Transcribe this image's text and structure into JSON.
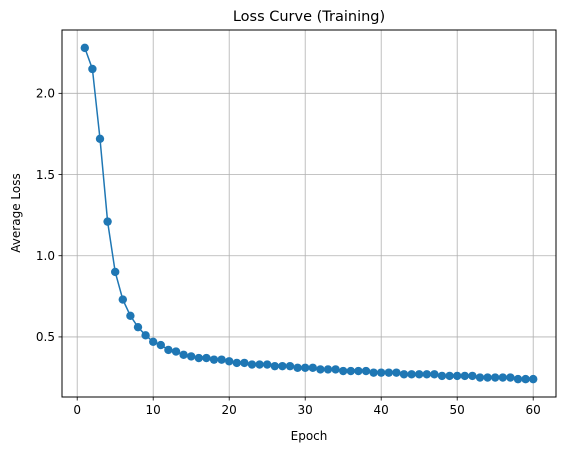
{
  "chart_data": {
    "type": "line",
    "title": "Loss Curve (Training)",
    "xlabel": "Epoch",
    "ylabel": "Average Loss",
    "xlim": [
      -2.0,
      63.0
    ],
    "ylim": [
      0.13,
      2.39
    ],
    "xticks": [
      0,
      10,
      20,
      30,
      40,
      50,
      60
    ],
    "yticks": [
      0.5,
      1.0,
      1.5,
      2.0
    ],
    "xtick_labels": [
      "0",
      "10",
      "20",
      "30",
      "40",
      "50",
      "60"
    ],
    "ytick_labels": [
      "0.5",
      "1.0",
      "1.5",
      "2.0"
    ],
    "grid": true,
    "marker": "circle",
    "color": "#1f77b4",
    "series": [
      {
        "x": [
          1,
          2,
          3,
          4,
          5,
          6,
          7,
          8,
          9,
          10,
          11,
          12,
          13,
          14,
          15,
          16,
          17,
          18,
          19,
          20,
          21,
          22,
          23,
          24,
          25,
          26,
          27,
          28,
          29,
          30,
          31,
          32,
          33,
          34,
          35,
          36,
          37,
          38,
          39,
          40,
          41,
          42,
          43,
          44,
          45,
          46,
          47,
          48,
          49,
          50,
          51,
          52,
          53,
          54,
          55,
          56,
          57,
          58,
          59,
          60
        ],
        "values": [
          2.28,
          2.15,
          1.72,
          1.21,
          0.9,
          0.73,
          0.63,
          0.56,
          0.51,
          0.47,
          0.45,
          0.42,
          0.41,
          0.39,
          0.38,
          0.37,
          0.37,
          0.36,
          0.36,
          0.35,
          0.34,
          0.34,
          0.33,
          0.33,
          0.33,
          0.32,
          0.32,
          0.32,
          0.31,
          0.31,
          0.31,
          0.3,
          0.3,
          0.3,
          0.29,
          0.29,
          0.29,
          0.29,
          0.28,
          0.28,
          0.28,
          0.28,
          0.27,
          0.27,
          0.27,
          0.27,
          0.27,
          0.26,
          0.26,
          0.26,
          0.26,
          0.26,
          0.25,
          0.25,
          0.25,
          0.25,
          0.25,
          0.24,
          0.24,
          0.24
        ]
      }
    ]
  }
}
